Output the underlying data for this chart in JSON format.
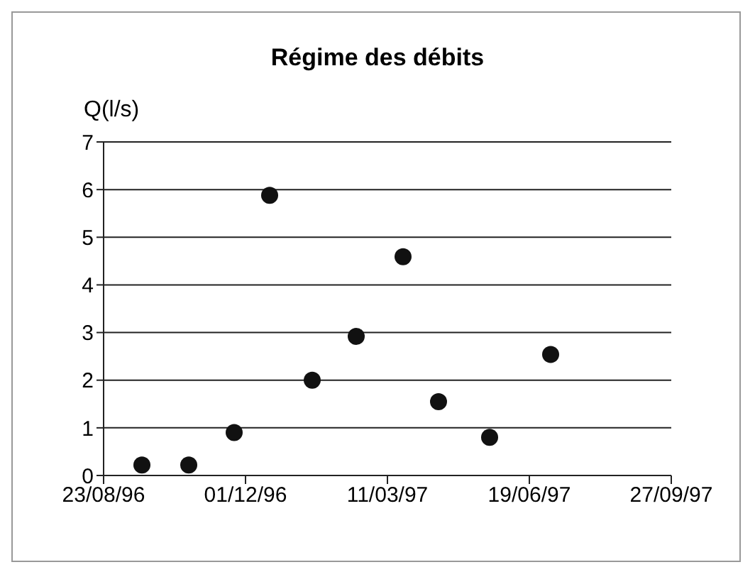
{
  "chart_data": {
    "type": "scatter",
    "title": "Régime des débits",
    "ylabel": "Q(l/s)",
    "x": [
      "1996-09-19",
      "1996-10-22",
      "1996-11-23",
      "1996-12-18",
      "1997-01-17",
      "1997-02-17",
      "1997-03-22",
      "1997-04-16",
      "1997-05-22",
      "1997-07-04"
    ],
    "series": [
      {
        "color": "#111111",
        "values": [
          0.22,
          0.22,
          0.9,
          5.88,
          2.0,
          2.92,
          4.59,
          1.55,
          0.8,
          2.54
        ]
      }
    ],
    "xlim": [
      "1996-08-23",
      "1997-09-27"
    ],
    "xticks": [
      {
        "value": "1996-08-23",
        "label": "23/08/96"
      },
      {
        "value": "1996-12-01",
        "label": "01/12/96"
      },
      {
        "value": "1997-03-11",
        "label": "11/03/97"
      },
      {
        "value": "1997-06-19",
        "label": "19/06/97"
      },
      {
        "value": "1997-09-27",
        "label": "27/09/97"
      }
    ],
    "ylim": [
      0,
      7
    ],
    "yticks": [
      0,
      1,
      2,
      3,
      4,
      5,
      6,
      7
    ],
    "grid": "y",
    "legend": false,
    "marker": "circle"
  }
}
